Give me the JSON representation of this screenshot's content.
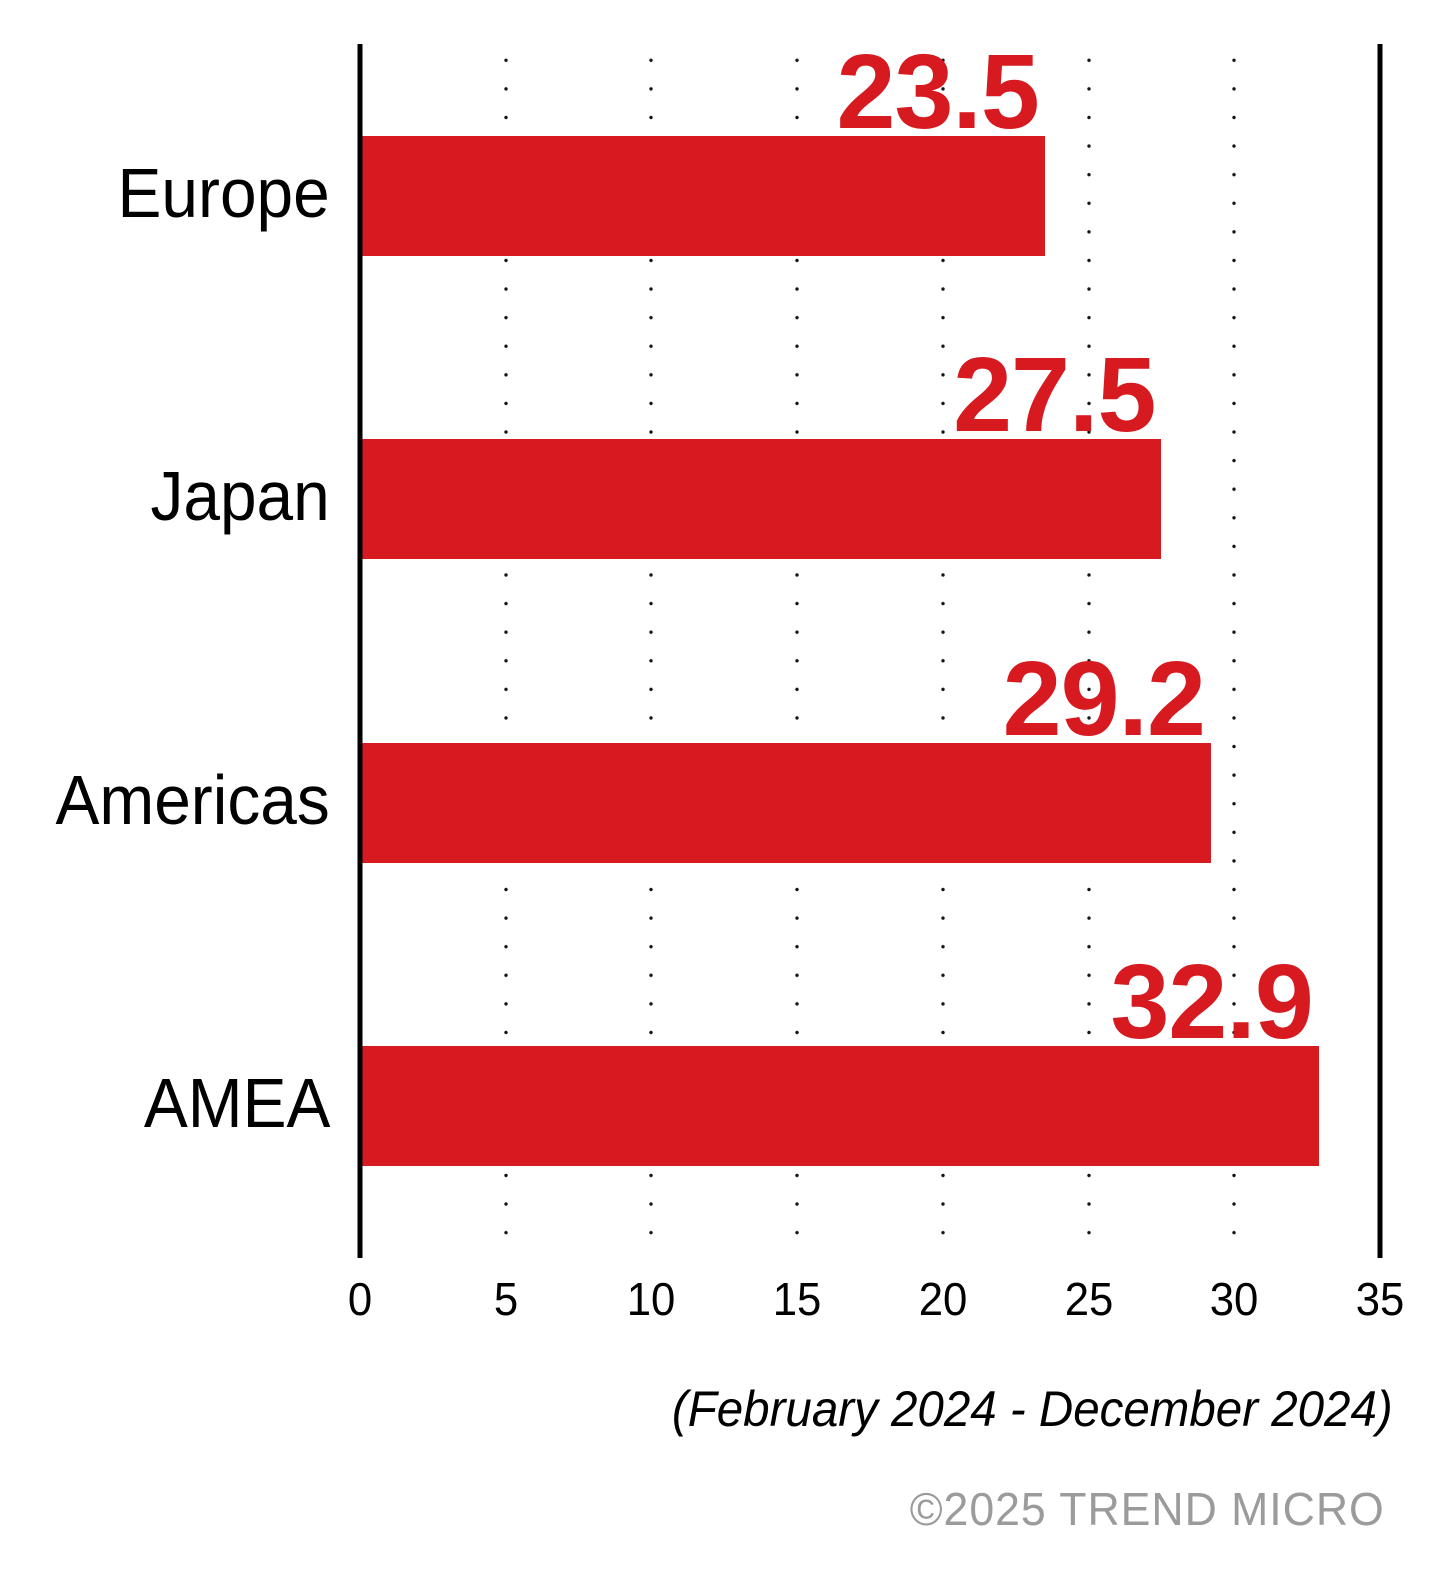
{
  "chart_data": {
    "type": "bar",
    "orientation": "horizontal",
    "categories": [
      "Europe",
      "Japan",
      "Americas",
      "AMEA"
    ],
    "values": [
      23.5,
      27.5,
      29.2,
      32.9
    ],
    "value_labels": [
      "23.5",
      "27.5",
      "29.2",
      "32.9"
    ],
    "xlim": [
      0,
      35
    ],
    "xticks": [
      0,
      5,
      10,
      15,
      20,
      25,
      30,
      35
    ],
    "grid": "dotted-vertical-between-axes",
    "legend": "none",
    "title": "",
    "xlabel": "",
    "ylabel": "",
    "caption": "(February 2024 - December 2024)",
    "copyright": "©2025 TREND MICRO",
    "colors": {
      "bar": "#d71920",
      "value_label": "#d71920",
      "axis": "#000000",
      "grid_dots": "#141414",
      "category_text": "#000000",
      "tick_text": "#000000",
      "copyright_text": "#9b9b9b",
      "background": "#ffffff"
    }
  }
}
